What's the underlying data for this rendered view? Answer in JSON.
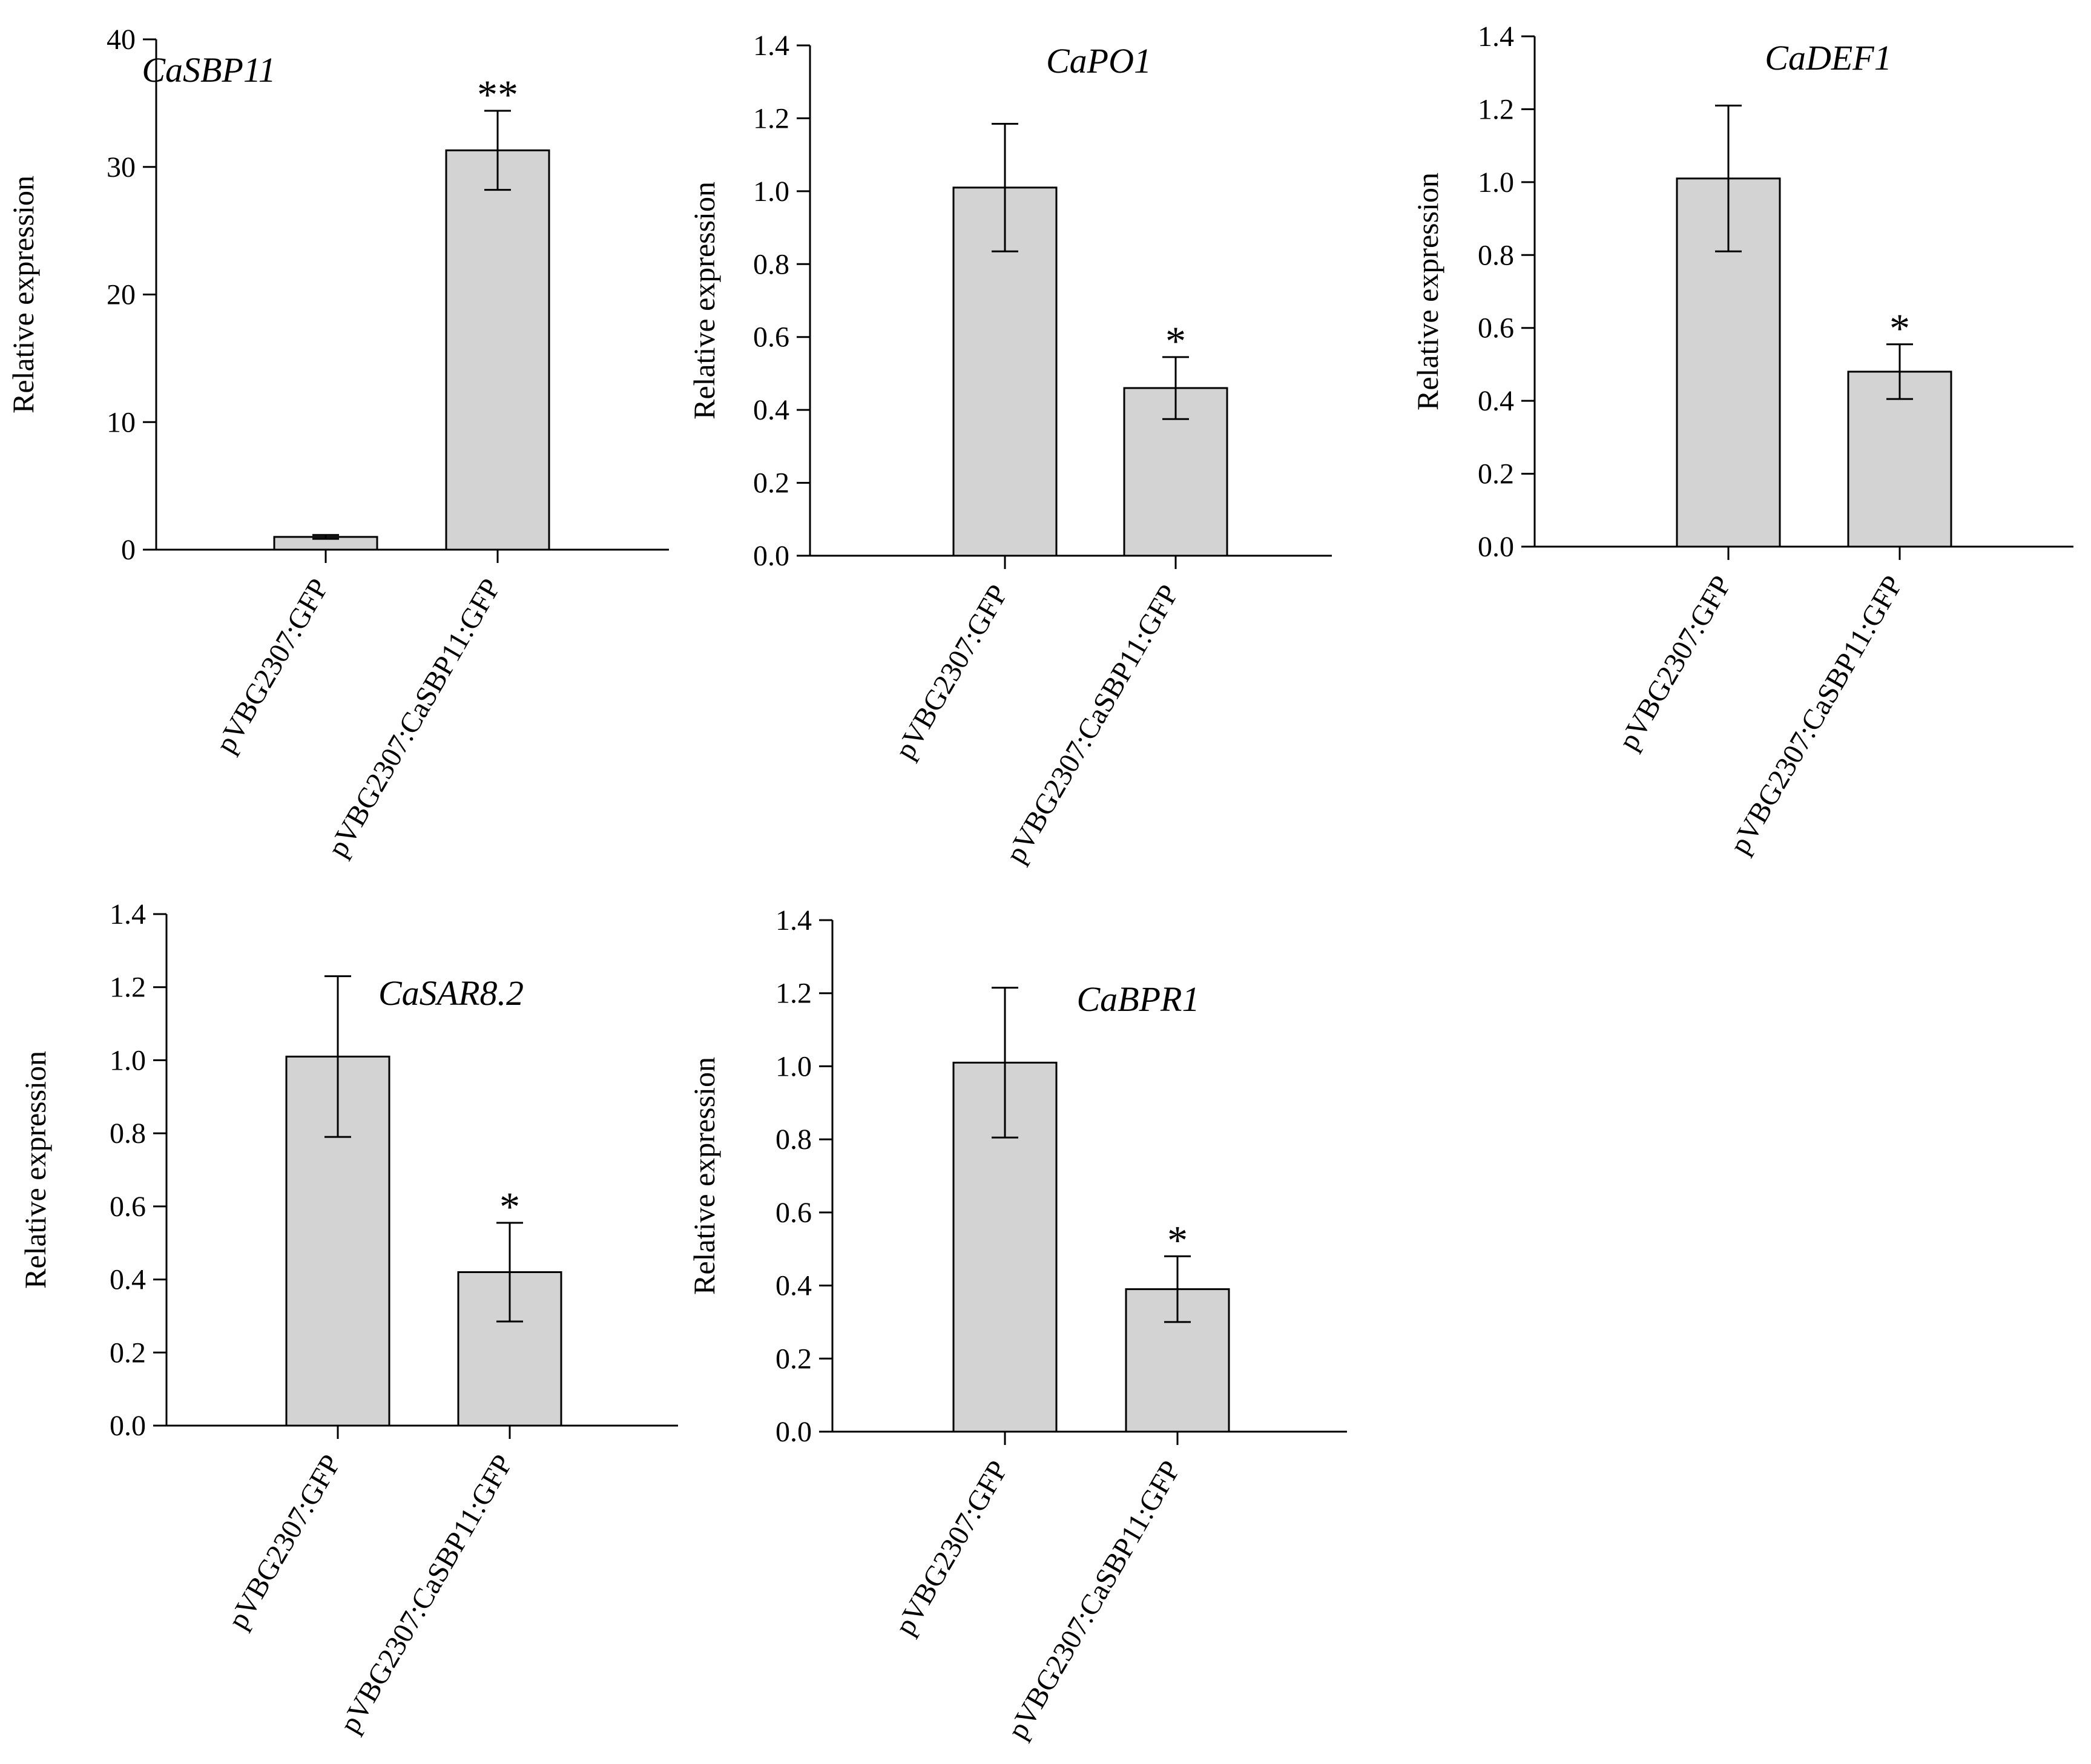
{
  "chart_data": [
    {
      "type": "bar",
      "title": "CaSBP11",
      "ylabel": "Relative expression",
      "xlabel": "",
      "ylim": [
        0,
        40
      ],
      "yticks": [
        "0",
        "10",
        "20",
        "30",
        "40"
      ],
      "categories": [
        "pVBG2307:GFP",
        "pVBG2307:CaSBP11:GFP"
      ],
      "values": [
        1.0,
        31.3
      ],
      "errors": [
        0.15,
        3.1
      ],
      "significance": [
        "",
        "**"
      ]
    },
    {
      "type": "bar",
      "title": "CaPO1",
      "ylabel": "Relative expression",
      "xlabel": "",
      "ylim": [
        0,
        1.4
      ],
      "yticks": [
        "0.0",
        "0.2",
        "0.4",
        "0.6",
        "0.8",
        "1.0",
        "1.2",
        "1.4"
      ],
      "categories": [
        "pVBG2307:GFP",
        "pVBG2307:CaSBP11:GFP"
      ],
      "values": [
        1.01,
        0.46
      ],
      "errors": [
        0.175,
        0.085
      ],
      "significance": [
        "",
        "*"
      ]
    },
    {
      "type": "bar",
      "title": "CaDEF1",
      "ylabel": "Relative expression",
      "xlabel": "",
      "ylim": [
        0,
        1.4
      ],
      "yticks": [
        "0.0",
        "0.2",
        "0.4",
        "0.6",
        "0.8",
        "1.0",
        "1.2",
        "1.4"
      ],
      "categories": [
        "pVBG2307:GFP",
        "pVBG2307:CaSBP11:GFP"
      ],
      "values": [
        1.01,
        0.48
      ],
      "errors": [
        0.2,
        0.075
      ],
      "significance": [
        "",
        "*"
      ]
    },
    {
      "type": "bar",
      "title": "CaSAR8.2",
      "ylabel": "Relative expression",
      "xlabel": "",
      "ylim": [
        0,
        1.4
      ],
      "yticks": [
        "0.0",
        "0.2",
        "0.4",
        "0.6",
        "0.8",
        "1.0",
        "1.2",
        "1.4"
      ],
      "categories": [
        "pVBG2307:GFP",
        "pVBG2307:CaSBP11:GFP"
      ],
      "values": [
        1.01,
        0.42
      ],
      "errors": [
        0.22,
        0.135
      ],
      "significance": [
        "",
        "*"
      ]
    },
    {
      "type": "bar",
      "title": "CaBPR1",
      "ylabel": "Relative expression",
      "xlabel": "",
      "ylim": [
        0,
        1.4
      ],
      "yticks": [
        "0.0",
        "0.2",
        "0.4",
        "0.6",
        "0.8",
        "1.0",
        "1.2",
        "1.4"
      ],
      "categories": [
        "pVBG2307:GFP",
        "pVBG2307:CaSBP11:GFP"
      ],
      "values": [
        1.01,
        0.39
      ],
      "errors": [
        0.205,
        0.09
      ],
      "significance": [
        "",
        "*"
      ]
    }
  ]
}
